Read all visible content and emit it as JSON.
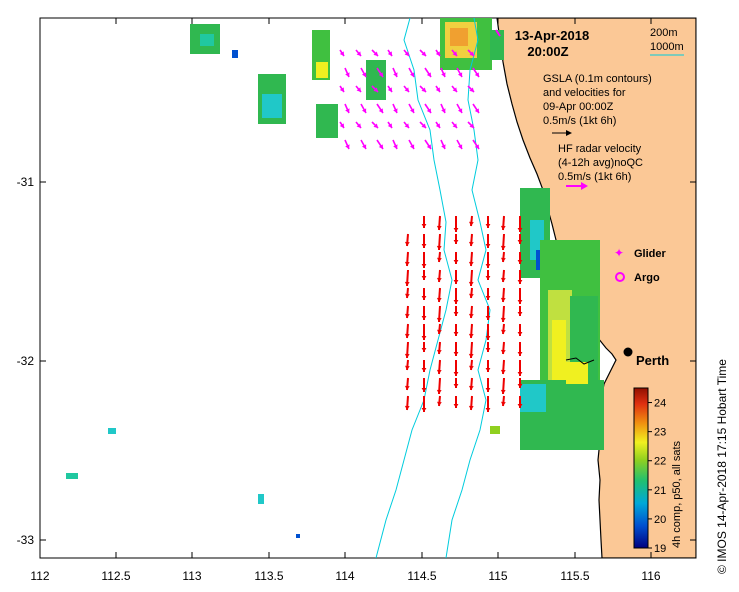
{
  "map": {
    "date": "13-Apr-2018",
    "time": "20:00Z",
    "contour_200": "200m",
    "contour_1000": "1000m",
    "gsla_line1": "GSLA (0.1m contours)",
    "gsla_line2": "and velocities for",
    "gsla_line3": "09-Apr 00:00Z",
    "gsla_scale": "0.5m/s (1kt 6h)",
    "hf_line1": "HF radar velocity",
    "hf_line2": "(4-12h avg)noQC",
    "hf_scale": "0.5m/s (1kt 6h)",
    "glider_label": "Glider",
    "argo_label": "Argo",
    "city": "Perth",
    "credit": "© IMOS 14-Apr-2018 17:15 Hobart Time",
    "x_ticks": [
      "112",
      "112.5",
      "113",
      "113.5",
      "114",
      "114.5",
      "115",
      "115.5",
      "116"
    ],
    "y_ticks": [
      "-31",
      "-32",
      "-33"
    ],
    "colorbar": {
      "title": "4h comp, p50, all sats",
      "ticks": [
        "19",
        "20",
        "21",
        "22",
        "23",
        "24"
      ],
      "min": 19,
      "max": 24.5
    },
    "colors": {
      "land": "#fbc896",
      "bathy": "#00ccdd",
      "gsla_arrow": "#ff00ff",
      "hf_arrow": "#ee0000"
    }
  }
}
